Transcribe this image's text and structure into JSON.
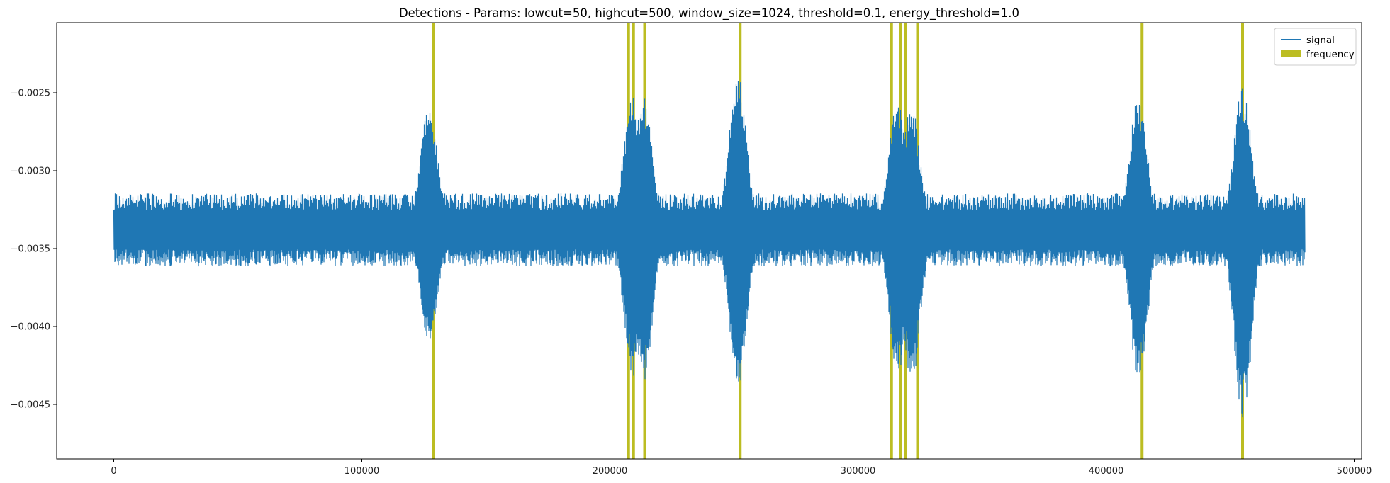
{
  "chart_data": {
    "type": "line",
    "title": "Detections - Params: lowcut=50, highcut=500, window_size=1024, threshold=0.1, energy_threshold=1.0",
    "xlabel": "",
    "ylabel": "",
    "xlim": [
      -23000,
      503000
    ],
    "ylim": [
      -0.00485,
      -0.00205
    ],
    "x_ticks": [
      0,
      100000,
      200000,
      300000,
      400000,
      500000
    ],
    "x_tick_labels": [
      "0",
      "100000",
      "200000",
      "300000",
      "400000",
      "500000"
    ],
    "y_ticks": [
      -0.0025,
      -0.003,
      -0.0035,
      -0.004,
      -0.0045
    ],
    "y_tick_labels": [
      "−0.0025",
      "−0.0030",
      "−0.0035",
      "−0.0040",
      "−0.0045"
    ],
    "grid": false,
    "legend_position": "upper right",
    "series": [
      {
        "name": "signal",
        "kind": "line",
        "color": "#1f77b4",
        "x_range": [
          0,
          480000
        ],
        "baseline": -0.00338,
        "bursts": [
          {
            "center": 127000,
            "min": -0.00412,
            "max": -0.00258
          },
          {
            "center": 209000,
            "min": -0.00433,
            "max": -0.00252
          },
          {
            "center": 213500,
            "min": -0.00437,
            "max": -0.00251
          },
          {
            "center": 251500,
            "min": -0.00441,
            "max": -0.00237
          },
          {
            "center": 316000,
            "min": -0.00432,
            "max": -0.00255
          },
          {
            "center": 321500,
            "min": -0.00436,
            "max": -0.00258
          },
          {
            "center": 413000,
            "min": -0.00438,
            "max": -0.0025
          },
          {
            "center": 455000,
            "min": -0.00461,
            "max": -0.00245
          }
        ]
      },
      {
        "name": "frequency",
        "kind": "vertical-lines",
        "color": "#bcbd22",
        "x": [
          129000,
          207500,
          209500,
          214000,
          252500,
          313500,
          317000,
          319000,
          324000,
          414500,
          455000
        ]
      }
    ]
  }
}
